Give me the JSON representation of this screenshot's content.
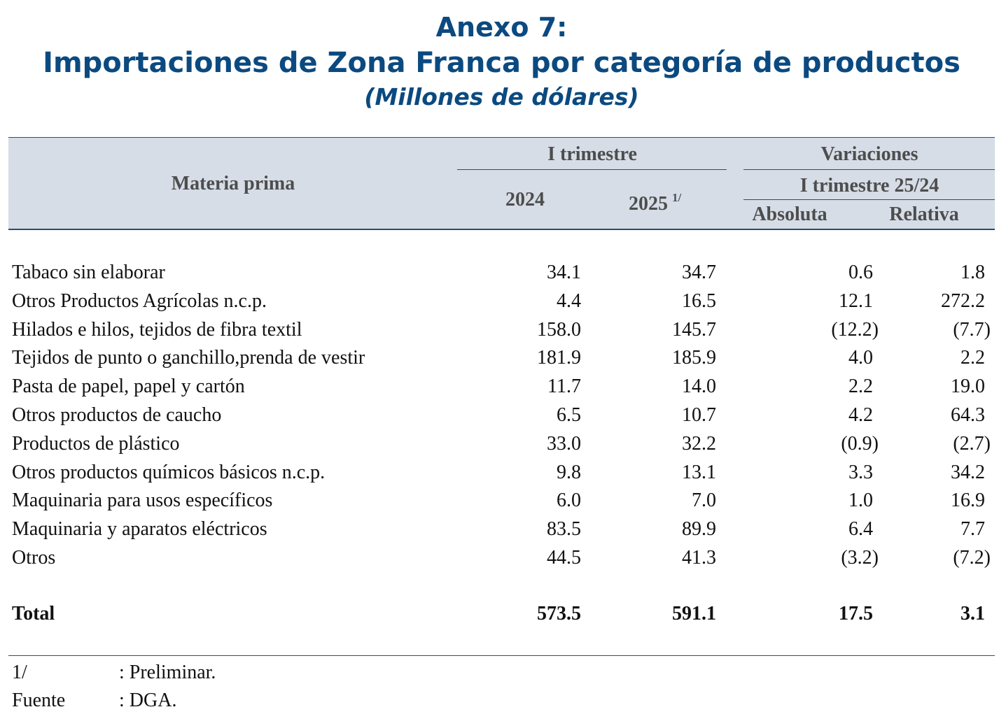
{
  "header": {
    "title": "Anexo 7:",
    "subtitle": "Importaciones de Zona Franca por categoría de productos",
    "unit": "(Millones de dólares)"
  },
  "table": {
    "columns": {
      "label": "Materia prima",
      "group1": "I trimestre",
      "year1": "2024",
      "year2": "2025",
      "year2_note": "1/",
      "group2": "Variaciones",
      "group2_sub": "I trimestre 25/24",
      "absolute": "Absoluta",
      "relative": "Relativa"
    },
    "rows": [
      [
        "Tabaco sin elaborar",
        "34.1",
        "34.7",
        "0.6",
        "1.8"
      ],
      [
        "Otros Productos Agrícolas n.c.p.",
        "4.4",
        "16.5",
        "12.1",
        "272.2"
      ],
      [
        "Hilados e hilos, tejidos de fibra textil",
        "158.0",
        "145.7",
        "(12.2)",
        "(7.7)"
      ],
      [
        "Tejidos de punto o ganchillo,prenda de vestir",
        "181.9",
        "185.9",
        "4.0",
        "2.2"
      ],
      [
        "Pasta de papel, papel y cartón",
        "11.7",
        "14.0",
        "2.2",
        "19.0"
      ],
      [
        "Otros productos de caucho",
        "6.5",
        "10.7",
        "4.2",
        "64.3"
      ],
      [
        "Productos de plástico",
        "33.0",
        "32.2",
        "(0.9)",
        "(2.7)"
      ],
      [
        "Otros productos químicos básicos n.c.p.",
        "9.8",
        "13.1",
        "3.3",
        "34.2"
      ],
      [
        "Maquinaria para usos específicos",
        "6.0",
        "7.0",
        "1.0",
        "16.9"
      ],
      [
        "Maquinaria y aparatos eléctricos",
        "83.5",
        "89.9",
        "6.4",
        "7.7"
      ],
      [
        "Otros",
        "44.5",
        "41.3",
        "(3.2)",
        "(7.2)"
      ]
    ],
    "total": [
      "Total",
      "573.5",
      "591.1",
      "17.5",
      "3.1"
    ]
  },
  "notes": [
    [
      "1/",
      ": Preliminar."
    ],
    [
      "Fuente",
      ": DGA."
    ]
  ]
}
